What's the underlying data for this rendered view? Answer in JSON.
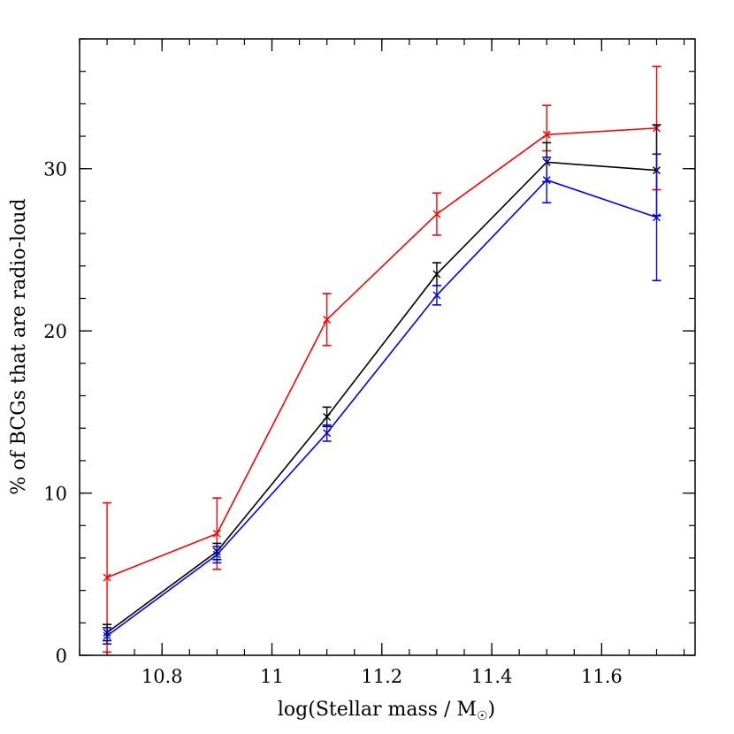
{
  "chart_data": {
    "type": "line",
    "title": "",
    "xlabel": "log(Stellar mass / M",
    "xlabel_subscript_symbol": "☉",
    "xlabel_suffix": ")",
    "ylabel": "% of BCGs that are radio-loud",
    "xlim": [
      10.65,
      11.77
    ],
    "ylim": [
      0,
      38
    ],
    "xticks": [
      10.8,
      11,
      11.2,
      11.4,
      11.6
    ],
    "xtick_labels": [
      "10.8",
      "11",
      "11.2",
      "11.4",
      "11.6"
    ],
    "yticks": [
      0,
      10,
      20,
      30
    ],
    "ytick_labels": [
      "0",
      "10",
      "20",
      "30"
    ],
    "x_minor_step": 0.05,
    "y_minor_step": 2,
    "grid": false,
    "series": [
      {
        "color": "#ff0000",
        "x": [
          10.7,
          10.9,
          11.1,
          11.3,
          11.5,
          11.7
        ],
        "y": [
          4.8,
          7.5,
          20.7,
          27.2,
          32.1,
          32.5
        ],
        "err_low": [
          4.6,
          2.2,
          1.6,
          1.3,
          1.0,
          3.8
        ],
        "err_high": [
          4.6,
          2.2,
          1.6,
          1.3,
          1.8,
          3.8
        ]
      },
      {
        "color": "#000000",
        "x": [
          10.7,
          10.9,
          11.1,
          11.3,
          11.5,
          11.7
        ],
        "y": [
          1.4,
          6.4,
          14.7,
          23.5,
          30.4,
          29.9
        ],
        "err_low": [
          0.5,
          0.5,
          0.6,
          0.7,
          1.2,
          2.8
        ],
        "err_high": [
          0.5,
          0.5,
          0.6,
          0.7,
          1.2,
          2.8
        ]
      },
      {
        "color": "#0000ff",
        "x": [
          10.7,
          10.9,
          11.1,
          11.3,
          11.5,
          11.7
        ],
        "y": [
          1.2,
          6.2,
          13.7,
          22.2,
          29.3,
          27.0
        ],
        "err_low": [
          0.5,
          0.5,
          0.5,
          0.6,
          1.4,
          3.9
        ],
        "err_high": [
          0.5,
          0.5,
          0.5,
          0.6,
          1.4,
          3.9
        ]
      }
    ]
  }
}
